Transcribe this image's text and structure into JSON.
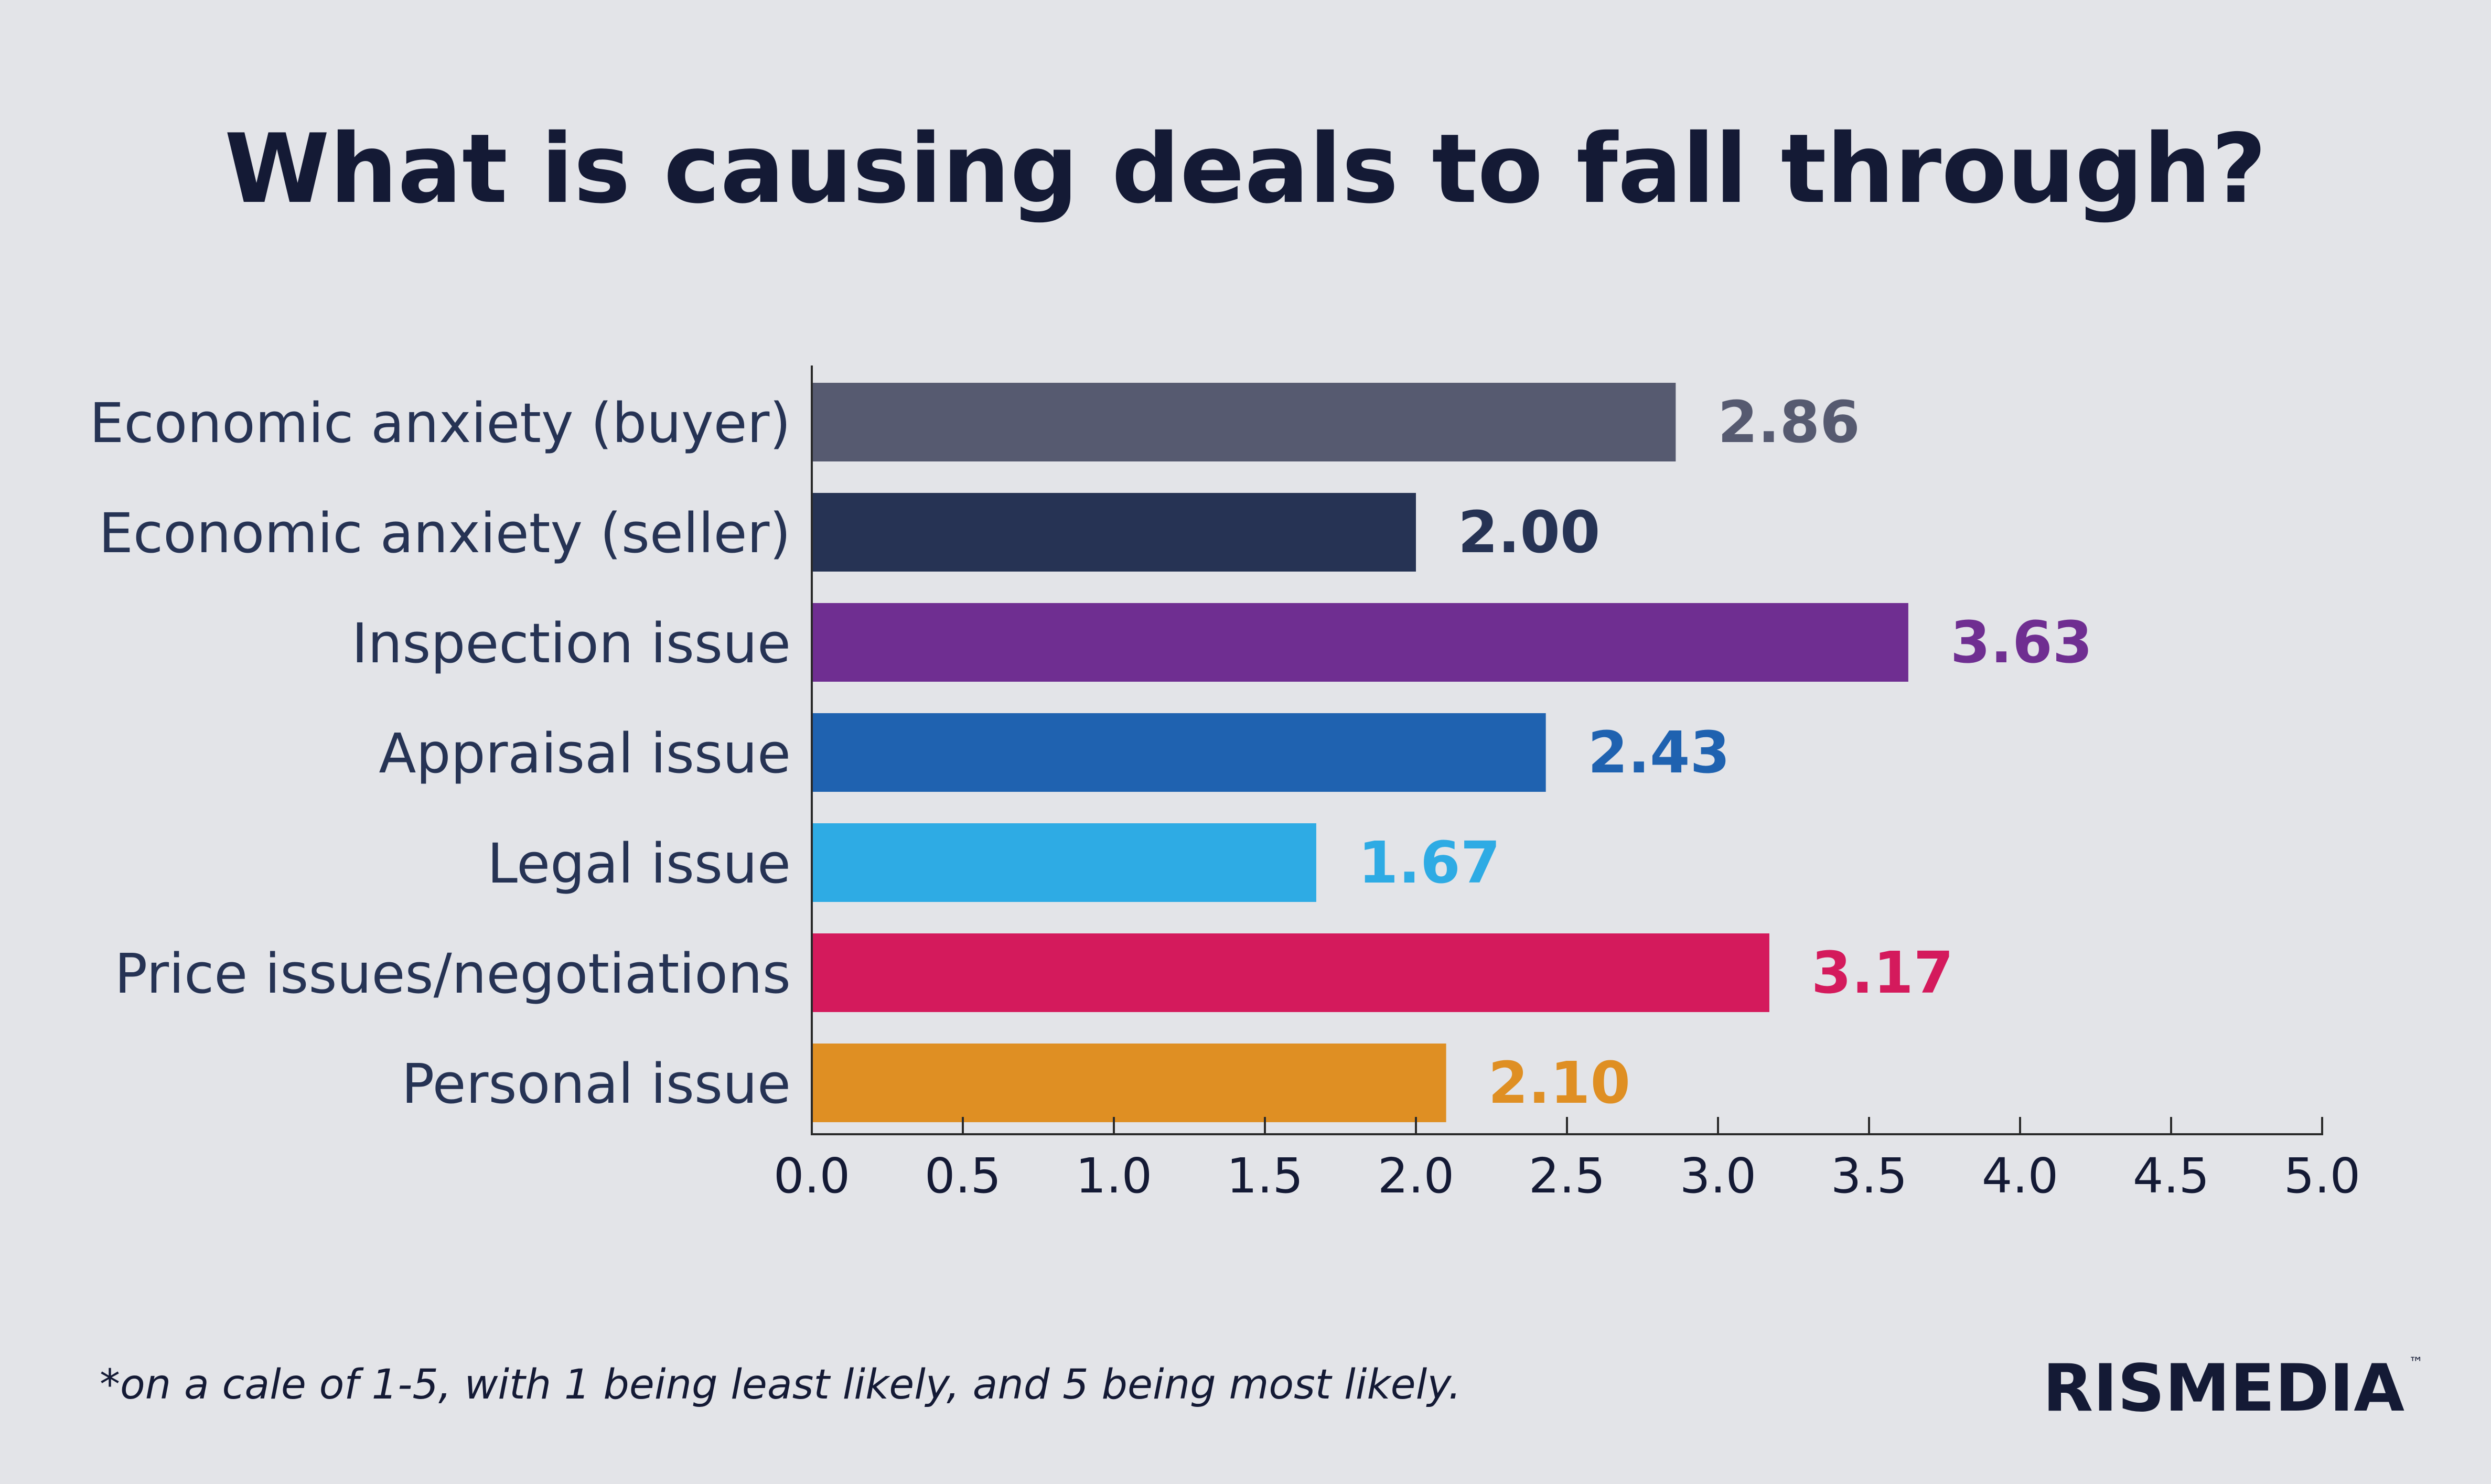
{
  "chart_data": {
    "type": "bar",
    "orientation": "horizontal",
    "title": "What is causing deals to fall through?",
    "categories": [
      "Economic anxiety (buyer)",
      "Economic anxiety (seller)",
      "Inspection issue",
      "Appraisal issue",
      "Legal issue",
      "Price issues/negotiations",
      "Personal issue"
    ],
    "values": [
      2.86,
      2.0,
      3.63,
      2.43,
      1.67,
      3.17,
      2.1
    ],
    "value_labels": [
      "2.86",
      "2.00",
      "3.63",
      "2.43",
      "1.67",
      "3.17",
      "2.10"
    ],
    "colors": [
      "#565a70",
      "#263354",
      "#6f2e91",
      "#1f62b0",
      "#2eabe4",
      "#d41a5c",
      "#df8f23"
    ],
    "xlim": [
      0,
      5
    ],
    "xticks": [
      "0.0",
      "0.5",
      "1.0",
      "1.5",
      "2.0",
      "2.5",
      "3.0",
      "3.5",
      "4.0",
      "4.5",
      "5.0"
    ],
    "xlabel": "",
    "ylabel": "",
    "grid": false,
    "legend": "none"
  },
  "footnote": "*on a cale of 1-5, with 1 being least likely, and 5 being most likely.",
  "brand": {
    "name": "RISMEDIA",
    "trademark": "™"
  },
  "colors": {
    "background": "#e3e4e8",
    "text_dark": "#141a35",
    "axis": "#2a2a2a"
  }
}
